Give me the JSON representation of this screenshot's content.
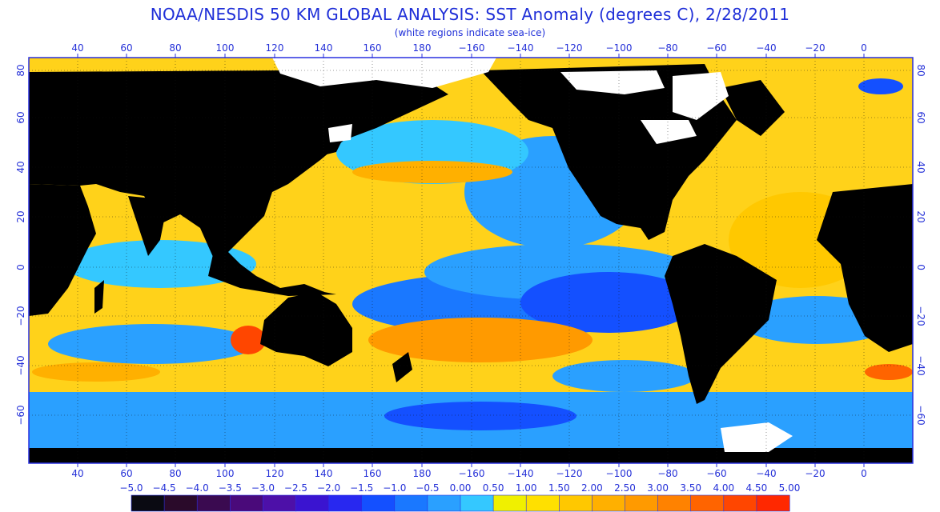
{
  "title": "NOAA/NESDIS 50 KM GLOBAL ANALYSIS: SST Anomaly (degrees C), 2/28/2011",
  "subtitle": "(white regions indicate sea-ice)",
  "axes": {
    "lon_ticks": [
      "40",
      "60",
      "80",
      "100",
      "120",
      "140",
      "160",
      "180",
      "−160",
      "−140",
      "−120",
      "−100",
      "−80",
      "−60",
      "−40",
      "−20",
      "0"
    ],
    "lat_ticks_left": [
      "80",
      "60",
      "40",
      "20",
      "0",
      "−20",
      "−40",
      "−60"
    ],
    "lat_ticks_right": [
      "80",
      "60",
      "40",
      "20",
      "0",
      "−20",
      "−40",
      "−60"
    ]
  },
  "colorbar": {
    "labels": [
      "−5.0",
      "−4.5",
      "−4.0",
      "−3.5",
      "−3.0",
      "−2.5",
      "−2.0",
      "−1.5",
      "−1.0",
      "−0.5",
      "0.00",
      "0.50",
      "1.00",
      "1.50",
      "2.00",
      "2.50",
      "3.00",
      "3.50",
      "4.00",
      "4.50",
      "5.00"
    ],
    "colors": [
      "#0a0a12",
      "#2a0a2a",
      "#3a0a50",
      "#4a0a7a",
      "#4d10a8",
      "#3a14d0",
      "#2828f0",
      "#1450ff",
      "#1a78ff",
      "#2aa0ff",
      "#34c8ff",
      "#f0f000",
      "#ffe000",
      "#ffc800",
      "#ffb000",
      "#ff9a00",
      "#ff8200",
      "#ff6400",
      "#ff4600",
      "#ff2800"
    ]
  },
  "colors": {
    "land": "#000000",
    "sea_ice": "#ffffff",
    "frame": "#2a30e0",
    "label": "#2430d8"
  }
}
